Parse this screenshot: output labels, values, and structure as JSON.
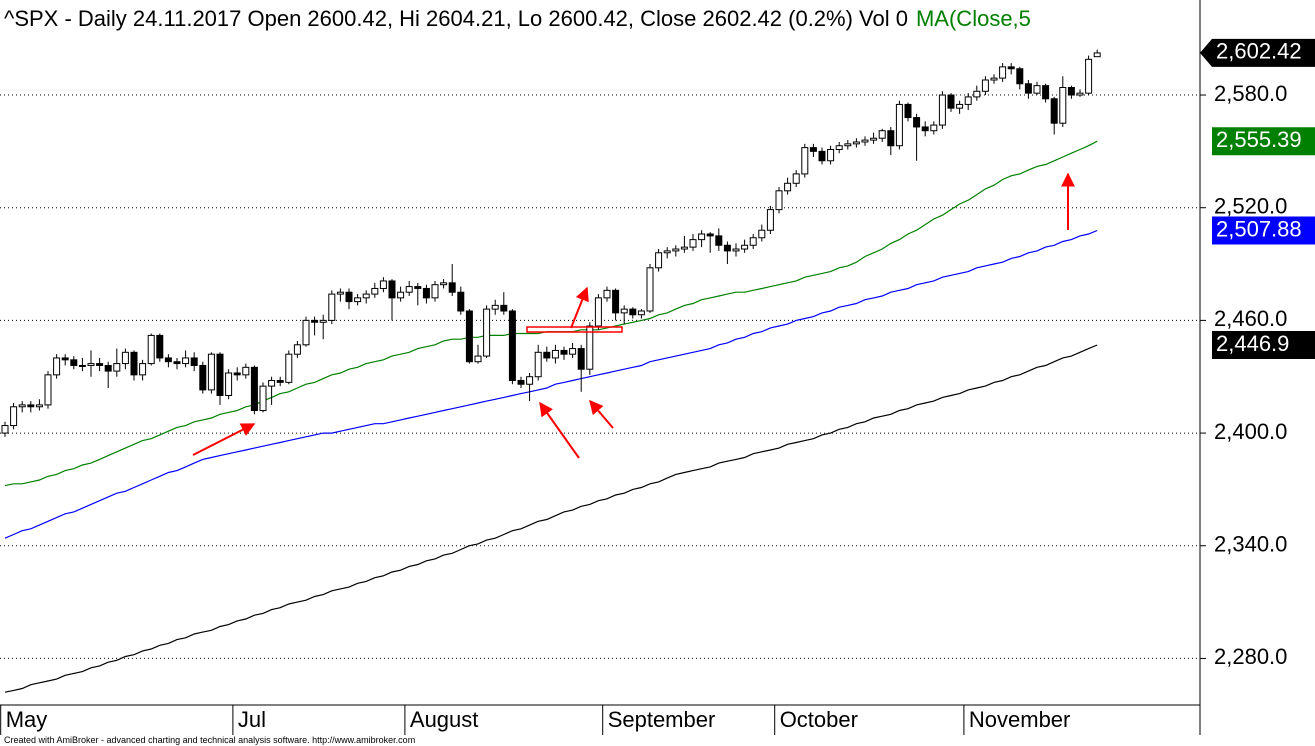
{
  "chart_data": {
    "type": "candlestick",
    "title": "^SPX - Daily 24.11.2017 Open 2600.42, Hi 2604.21, Lo 2600.42, Close 2602.42 (0.2%) Vol 0",
    "title_extra": "MA(Close,5",
    "footer": "Created with AmiBroker - advanced charting and technical analysis software. http://www.amibroker.com",
    "categories": [
      "May",
      null,
      null,
      null,
      null,
      null,
      null,
      null,
      null,
      null,
      null,
      null,
      null,
      null,
      null,
      null,
      null,
      null,
      null,
      null,
      null,
      null,
      null,
      null,
      null,
      null,
      null,
      "Jul",
      null,
      null,
      null,
      null,
      null,
      null,
      null,
      null,
      null,
      null,
      null,
      null,
      null,
      null,
      null,
      null,
      null,
      null,
      null,
      "August",
      null,
      null,
      null,
      null,
      null,
      null,
      null,
      null,
      null,
      null,
      null,
      null,
      null,
      null,
      null,
      null,
      null,
      null,
      null,
      null,
      null,
      null,
      "September",
      null,
      null,
      null,
      null,
      null,
      null,
      null,
      null,
      null,
      null,
      null,
      null,
      null,
      null,
      null,
      null,
      null,
      null,
      null,
      "October",
      null,
      null,
      null,
      null,
      null,
      null,
      null,
      null,
      null,
      null,
      null,
      null,
      null,
      null,
      null,
      null,
      null,
      null,
      null,
      null,
      null,
      "November",
      null,
      null,
      null,
      null,
      null,
      null,
      null,
      null,
      null,
      null,
      null,
      null,
      null,
      null,
      null
    ],
    "open": [
      2400,
      2404,
      2414,
      2415,
      2414,
      2415,
      2431,
      2440,
      2439,
      2436,
      2436,
      2437,
      2436,
      2433,
      2437,
      2443,
      2431,
      2437,
      2452,
      2440,
      2438,
      2437,
      2440,
      2436,
      2423,
      2442,
      2420,
      2432,
      2431,
      2435,
      2412,
      2425,
      2428,
      2427,
      2442,
      2447,
      2460,
      2459,
      2460,
      2474,
      2475,
      2470,
      2472,
      2474,
      2477,
      2481,
      2472,
      2475,
      2478,
      2477,
      2472,
      2479,
      2480,
      2475,
      2465,
      2438,
      2441,
      2466,
      2468,
      2465,
      2428,
      2426,
      2430,
      2443,
      2440,
      2444,
      2442,
      2445,
      2434,
      2457,
      2472,
      2476,
      2464,
      2466,
      2463,
      2465,
      2488,
      2496,
      2497,
      2498,
      2499,
      2503,
      2506,
      2505,
      2500,
      2497,
      2498,
      2500,
      2504,
      2508,
      2519,
      2529,
      2533,
      2538,
      2552,
      2550,
      2545,
      2551,
      2553,
      2554,
      2555,
      2556,
      2557,
      2561,
      2553,
      2575,
      2568,
      2563,
      2561,
      2564,
      2580,
      2573,
      2575,
      2579,
      2582,
      2588,
      2589,
      2595,
      2594,
      2586,
      2581,
      2585,
      2578,
      2565,
      2584,
      2580,
      2581,
      2600.42
    ],
    "high": [
      2406,
      2416,
      2417,
      2417,
      2418,
      2433,
      2442,
      2442,
      2441,
      2440,
      2444,
      2440,
      2438,
      2445,
      2445,
      2444,
      2439,
      2453,
      2453,
      2442,
      2440,
      2444,
      2443,
      2438,
      2443,
      2443,
      2434,
      2435,
      2437,
      2436,
      2427,
      2430,
      2430,
      2444,
      2449,
      2462,
      2462,
      2463,
      2476,
      2477,
      2477,
      2474,
      2476,
      2480,
      2483,
      2482,
      2478,
      2481,
      2480,
      2479,
      2481,
      2482,
      2490,
      2478,
      2466,
      2447,
      2468,
      2471,
      2475,
      2466,
      2430,
      2432,
      2447,
      2446,
      2447,
      2446,
      2448,
      2447,
      2459,
      2474,
      2478,
      2477,
      2468,
      2467,
      2466,
      2490,
      2498,
      2499,
      2500,
      2505,
      2506,
      2508,
      2507,
      2509,
      2502,
      2501,
      2503,
      2506,
      2511,
      2521,
      2531,
      2536,
      2540,
      2554,
      2554,
      2552,
      2553,
      2555,
      2556,
      2557,
      2558,
      2560,
      2562,
      2563,
      2577,
      2576,
      2570,
      2566,
      2566,
      2582,
      2581,
      2577,
      2581,
      2585,
      2590,
      2591,
      2597,
      2597,
      2595,
      2588,
      2587,
      2586,
      2579,
      2590,
      2585,
      2583,
      2601,
      2604.21
    ],
    "low": [
      2398,
      2402,
      2411,
      2411,
      2412,
      2413,
      2429,
      2436,
      2434,
      2433,
      2430,
      2433,
      2424,
      2430,
      2434,
      2428,
      2428,
      2436,
      2438,
      2435,
      2434,
      2435,
      2433,
      2421,
      2421,
      2415,
      2418,
      2428,
      2429,
      2410,
      2411,
      2415,
      2425,
      2426,
      2440,
      2446,
      2452,
      2450,
      2458,
      2470,
      2466,
      2468,
      2469,
      2472,
      2475,
      2460,
      2470,
      2473,
      2468,
      2469,
      2470,
      2477,
      2473,
      2463,
      2437,
      2437,
      2440,
      2463,
      2463,
      2426,
      2424,
      2417,
      2428,
      2438,
      2437,
      2439,
      2440,
      2422,
      2431,
      2455,
      2470,
      2460,
      2458,
      2461,
      2461,
      2464,
      2486,
      2493,
      2494,
      2496,
      2497,
      2499,
      2496,
      2497,
      2490,
      2494,
      2496,
      2498,
      2502,
      2506,
      2517,
      2527,
      2531,
      2536,
      2547,
      2543,
      2543,
      2549,
      2551,
      2552,
      2553,
      2554,
      2555,
      2548,
      2551,
      2566,
      2545,
      2558,
      2559,
      2562,
      2571,
      2570,
      2572,
      2577,
      2580,
      2586,
      2587,
      2591,
      2583,
      2578,
      2580,
      2576,
      2559,
      2563,
      2578,
      2579,
      2580,
      2600.42
    ],
    "close": [
      2404,
      2414,
      2415,
      2414,
      2415,
      2431,
      2440,
      2439,
      2436,
      2436,
      2437,
      2436,
      2433,
      2437,
      2443,
      2431,
      2437,
      2452,
      2440,
      2438,
      2437,
      2440,
      2436,
      2423,
      2442,
      2420,
      2432,
      2431,
      2435,
      2412,
      2425,
      2428,
      2427,
      2442,
      2447,
      2460,
      2459,
      2460,
      2474,
      2475,
      2470,
      2472,
      2474,
      2477,
      2481,
      2472,
      2475,
      2478,
      2477,
      2472,
      2479,
      2480,
      2475,
      2465,
      2438,
      2441,
      2466,
      2468,
      2465,
      2428,
      2426,
      2430,
      2443,
      2440,
      2444,
      2442,
      2445,
      2434,
      2457,
      2472,
      2476,
      2464,
      2466,
      2463,
      2465,
      2488,
      2496,
      2497,
      2498,
      2499,
      2503,
      2506,
      2505,
      2500,
      2497,
      2498,
      2500,
      2504,
      2508,
      2519,
      2529,
      2533,
      2538,
      2552,
      2550,
      2545,
      2551,
      2553,
      2554,
      2555,
      2556,
      2557,
      2561,
      2553,
      2575,
      2568,
      2563,
      2561,
      2564,
      2580,
      2573,
      2575,
      2579,
      2582,
      2588,
      2589,
      2595,
      2594,
      2586,
      2581,
      2585,
      2578,
      2565,
      2584,
      2580,
      2581,
      2599,
      2602.42
    ],
    "close_label": "2,602.42",
    "color": "#000000",
    "series": [
      {
        "color": "#008000",
        "value_label": "2,555.39",
        "values": [
          2372,
          2373,
          2373,
          2374,
          2375,
          2377,
          2378,
          2380,
          2381,
          2383,
          2384,
          2386,
          2388,
          2390,
          2392,
          2394,
          2396,
          2397,
          2399,
          2401,
          2403,
          2404,
          2406,
          2407,
          2408,
          2410,
          2411,
          2412,
          2414,
          2415,
          2417,
          2419,
          2421,
          2422,
          2424,
          2426,
          2427,
          2429,
          2431,
          2432,
          2434,
          2435,
          2437,
          2438,
          2439,
          2441,
          2442,
          2443,
          2445,
          2446,
          2447,
          2449,
          2450,
          2450,
          2451,
          2451,
          2452,
          2452,
          2452,
          2453,
          2453,
          2453,
          2453,
          2454,
          2454,
          2454,
          2454,
          2455,
          2455,
          2455,
          2456,
          2457,
          2458,
          2459,
          2460,
          2461,
          2463,
          2464,
          2466,
          2468,
          2469,
          2471,
          2472,
          2473,
          2474,
          2475,
          2475,
          2476,
          2477,
          2478,
          2479,
          2480,
          2481,
          2483,
          2484,
          2485,
          2486,
          2488,
          2489,
          2491,
          2494,
          2496,
          2498,
          2501,
          2503,
          2506,
          2508,
          2511,
          2514,
          2516,
          2519,
          2522,
          2524,
          2527,
          2530,
          2532,
          2535,
          2537,
          2538,
          2540,
          2542,
          2543,
          2545,
          2547,
          2549,
          2551,
          2553,
          2555.39
        ]
      },
      {
        "color": "#0000ff",
        "value_label": "2,507.88",
        "values": [
          2344,
          2346,
          2348,
          2349,
          2351,
          2353,
          2355,
          2357,
          2358,
          2360,
          2362,
          2364,
          2366,
          2368,
          2369,
          2371,
          2373,
          2375,
          2377,
          2379,
          2380,
          2382,
          2384,
          2386,
          2387,
          2388,
          2389,
          2390,
          2391,
          2392,
          2393,
          2394,
          2395,
          2396,
          2397,
          2398,
          2399,
          2400,
          2400,
          2401,
          2402,
          2403,
          2404,
          2405,
          2405,
          2406,
          2407,
          2408,
          2409,
          2410,
          2411,
          2412,
          2413,
          2414,
          2415,
          2416,
          2417,
          2418,
          2419,
          2420,
          2421,
          2422,
          2423,
          2424,
          2426,
          2427,
          2428,
          2429,
          2430,
          2431,
          2432,
          2433,
          2434,
          2435,
          2436,
          2438,
          2439,
          2440,
          2441,
          2442,
          2443,
          2444,
          2445,
          2447,
          2448,
          2450,
          2451,
          2453,
          2454,
          2456,
          2457,
          2458,
          2460,
          2461,
          2462,
          2464,
          2465,
          2467,
          2468,
          2469,
          2471,
          2472,
          2473,
          2475,
          2476,
          2477,
          2479,
          2480,
          2481,
          2483,
          2484,
          2485,
          2486,
          2488,
          2489,
          2490,
          2491,
          2493,
          2494,
          2496,
          2497,
          2499,
          2500,
          2502,
          2503,
          2505,
          2506,
          2507.88
        ]
      },
      {
        "color": "#000000",
        "value_label": "2,446.9",
        "values": [
          2262,
          2263,
          2264,
          2266,
          2267,
          2268,
          2269,
          2271,
          2272,
          2273,
          2275,
          2276,
          2278,
          2279,
          2281,
          2282,
          2284,
          2285,
          2287,
          2288,
          2290,
          2291,
          2293,
          2294,
          2295,
          2297,
          2298,
          2300,
          2301,
          2303,
          2304,
          2306,
          2307,
          2309,
          2310,
          2311,
          2313,
          2314,
          2316,
          2317,
          2318,
          2320,
          2321,
          2323,
          2324,
          2326,
          2327,
          2329,
          2330,
          2332,
          2333,
          2335,
          2336,
          2338,
          2340,
          2341,
          2343,
          2344,
          2346,
          2348,
          2349,
          2351,
          2353,
          2354,
          2356,
          2358,
          2359,
          2361,
          2362,
          2364,
          2365,
          2367,
          2368,
          2370,
          2371,
          2373,
          2374,
          2376,
          2378,
          2379,
          2380,
          2381,
          2382,
          2384,
          2385,
          2386,
          2387,
          2389,
          2390,
          2391,
          2392,
          2394,
          2395,
          2396,
          2397,
          2399,
          2400,
          2402,
          2403,
          2405,
          2406,
          2408,
          2409,
          2410,
          2412,
          2413,
          2415,
          2416,
          2417,
          2419,
          2420,
          2421,
          2423,
          2424,
          2425,
          2427,
          2428,
          2430,
          2431,
          2433,
          2435,
          2436,
          2438,
          2440,
          2441,
          2443,
          2445,
          2446.9
        ]
      }
    ],
    "ylim": [
      2255.2,
      2630.6
    ],
    "yticks": [
      {
        "value": 2280,
        "label": "2,280.0"
      },
      {
        "value": 2340,
        "label": "2,340.0"
      },
      {
        "value": 2400,
        "label": "2,400.0"
      },
      {
        "value": 2460,
        "label": "2,460.0"
      },
      {
        "value": 2520,
        "label": "2,520.0"
      },
      {
        "value": 2580,
        "label": "2,580.0"
      }
    ],
    "grid": true
  }
}
